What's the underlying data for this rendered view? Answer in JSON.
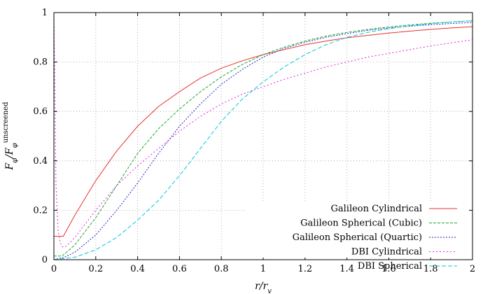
{
  "chart_data": {
    "type": "line",
    "title": "",
    "xlabel": "r/r_v",
    "ylabel": "F_φ/F_φ^unscreened",
    "xlim": [
      0,
      2
    ],
    "ylim": [
      0,
      1
    ],
    "grid": true,
    "legend_position": "bottom-right",
    "x_ticks": [
      "0",
      "0.2",
      "0.4",
      "0.6",
      "0.8",
      "1",
      "1.2",
      "1.4",
      "1.6",
      "1.8",
      "2"
    ],
    "y_ticks": [
      "0",
      "0.2",
      "0.4",
      "0.6",
      "0.8",
      "1"
    ],
    "series": [
      {
        "name": "Galileon Cylindrical",
        "color": "#e8312b",
        "dash": "",
        "x": [
          0,
          0.01,
          0.02,
          0.03,
          0.045,
          0.1,
          0.2,
          0.3,
          0.4,
          0.5,
          0.6,
          0.7,
          0.8,
          0.9,
          1.0,
          1.1,
          1.2,
          1.3,
          1.4,
          1.5,
          1.6,
          1.7,
          1.8,
          1.9,
          2.0
        ],
        "y": [
          0.095,
          0.095,
          0.095,
          0.095,
          0.095,
          0.18,
          0.32,
          0.44,
          0.54,
          0.62,
          0.68,
          0.735,
          0.775,
          0.805,
          0.83,
          0.85,
          0.87,
          0.885,
          0.898,
          0.908,
          0.917,
          0.925,
          0.932,
          0.938,
          0.943
        ]
      },
      {
        "name": "Galileon Spherical (Cubic)",
        "color": "#1ea62d",
        "dash": "4 2",
        "x": [
          0,
          0.02,
          0.04,
          0.1,
          0.2,
          0.3,
          0.4,
          0.5,
          0.6,
          0.7,
          0.8,
          0.9,
          1.0,
          1.1,
          1.2,
          1.3,
          1.4,
          1.5,
          1.6,
          1.7,
          1.8,
          1.9,
          2.0
        ],
        "y": [
          0.015,
          0.015,
          0.015,
          0.06,
          0.17,
          0.3,
          0.43,
          0.53,
          0.61,
          0.68,
          0.74,
          0.79,
          0.83,
          0.86,
          0.885,
          0.905,
          0.92,
          0.932,
          0.942,
          0.95,
          0.957,
          0.962,
          0.967
        ]
      },
      {
        "name": "Galileon Spherical (Quartic)",
        "color": "#2222c8",
        "dash": "2 2",
        "x": [
          0,
          0.05,
          0.1,
          0.2,
          0.3,
          0.4,
          0.5,
          0.6,
          0.7,
          0.8,
          0.9,
          1.0,
          1.1,
          1.2,
          1.3,
          1.4,
          1.5,
          1.6,
          1.7,
          1.8,
          1.9,
          2.0
        ],
        "y": [
          0.0,
          0.01,
          0.03,
          0.1,
          0.2,
          0.31,
          0.43,
          0.54,
          0.63,
          0.71,
          0.77,
          0.82,
          0.855,
          0.88,
          0.9,
          0.915,
          0.928,
          0.938,
          0.945,
          0.951,
          0.956,
          0.96
        ]
      },
      {
        "name": "DBI Cylindrical",
        "color": "#e020e0",
        "dash": "2 3",
        "x": [
          0,
          0.005,
          0.01,
          0.02,
          0.03,
          0.04,
          0.06,
          0.1,
          0.2,
          0.3,
          0.4,
          0.5,
          0.6,
          0.7,
          0.8,
          0.9,
          1.0,
          1.1,
          1.2,
          1.3,
          1.4,
          1.5,
          1.6,
          1.7,
          1.8,
          1.9,
          2.0
        ],
        "y": [
          1.0,
          0.65,
          0.3,
          0.12,
          0.07,
          0.052,
          0.055,
          0.09,
          0.2,
          0.3,
          0.38,
          0.45,
          0.52,
          0.58,
          0.63,
          0.67,
          0.7,
          0.73,
          0.755,
          0.78,
          0.8,
          0.82,
          0.835,
          0.85,
          0.865,
          0.878,
          0.89
        ]
      },
      {
        "name": "DBI Spherical",
        "color": "#00c8d8",
        "dash": "6 3",
        "x": [
          0,
          0.1,
          0.2,
          0.3,
          0.4,
          0.5,
          0.6,
          0.7,
          0.8,
          0.9,
          1.0,
          1.1,
          1.2,
          1.3,
          1.4,
          1.5,
          1.6,
          1.7,
          1.8,
          1.9,
          2.0
        ],
        "y": [
          0.0,
          0.01,
          0.04,
          0.09,
          0.16,
          0.24,
          0.34,
          0.45,
          0.56,
          0.65,
          0.72,
          0.78,
          0.83,
          0.87,
          0.9,
          0.92,
          0.935,
          0.947,
          0.955,
          0.962,
          0.967
        ]
      }
    ]
  }
}
